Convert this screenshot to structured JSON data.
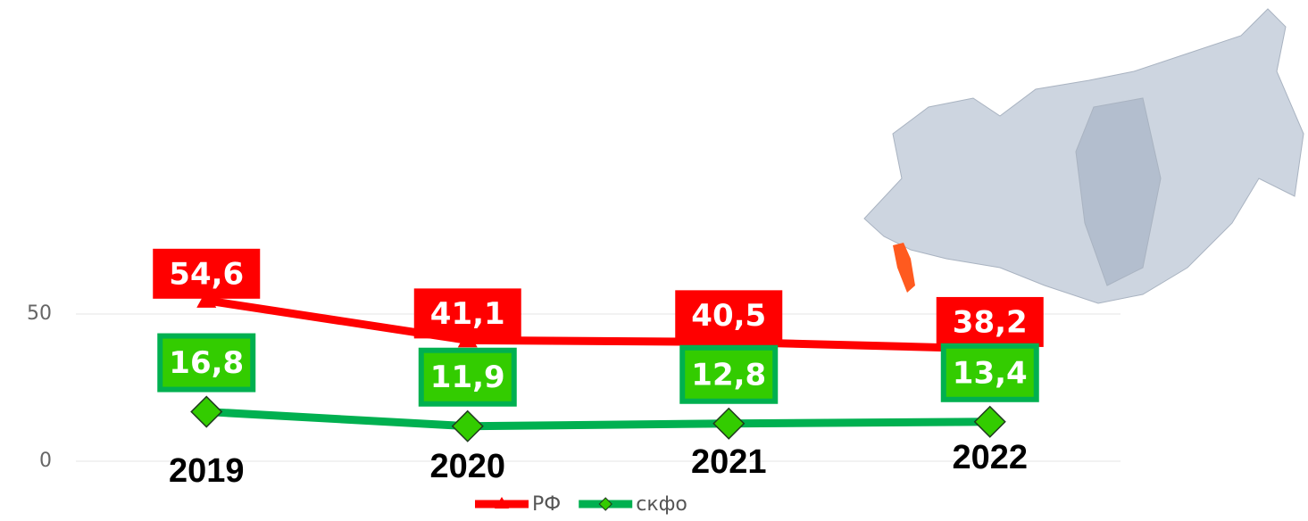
{
  "chart_data": {
    "type": "line",
    "categories": [
      "2019",
      "2020",
      "2021",
      "2022"
    ],
    "series": [
      {
        "name": "РФ",
        "color": "#ff0000",
        "values": [
          54.6,
          41.1,
          40.5,
          38.2
        ],
        "value_labels": [
          "54,6",
          "41,1",
          "40,5",
          "38,2"
        ]
      },
      {
        "name": "скфо",
        "color": "#00b050",
        "values": [
          16.8,
          11.9,
          12.8,
          13.4
        ],
        "value_labels": [
          "16,8",
          "11,9",
          "12,8",
          "13,4"
        ]
      }
    ],
    "ylim": [
      0,
      150
    ],
    "yticks": [
      0,
      50
    ],
    "grid": true,
    "legend": "bottom"
  }
}
